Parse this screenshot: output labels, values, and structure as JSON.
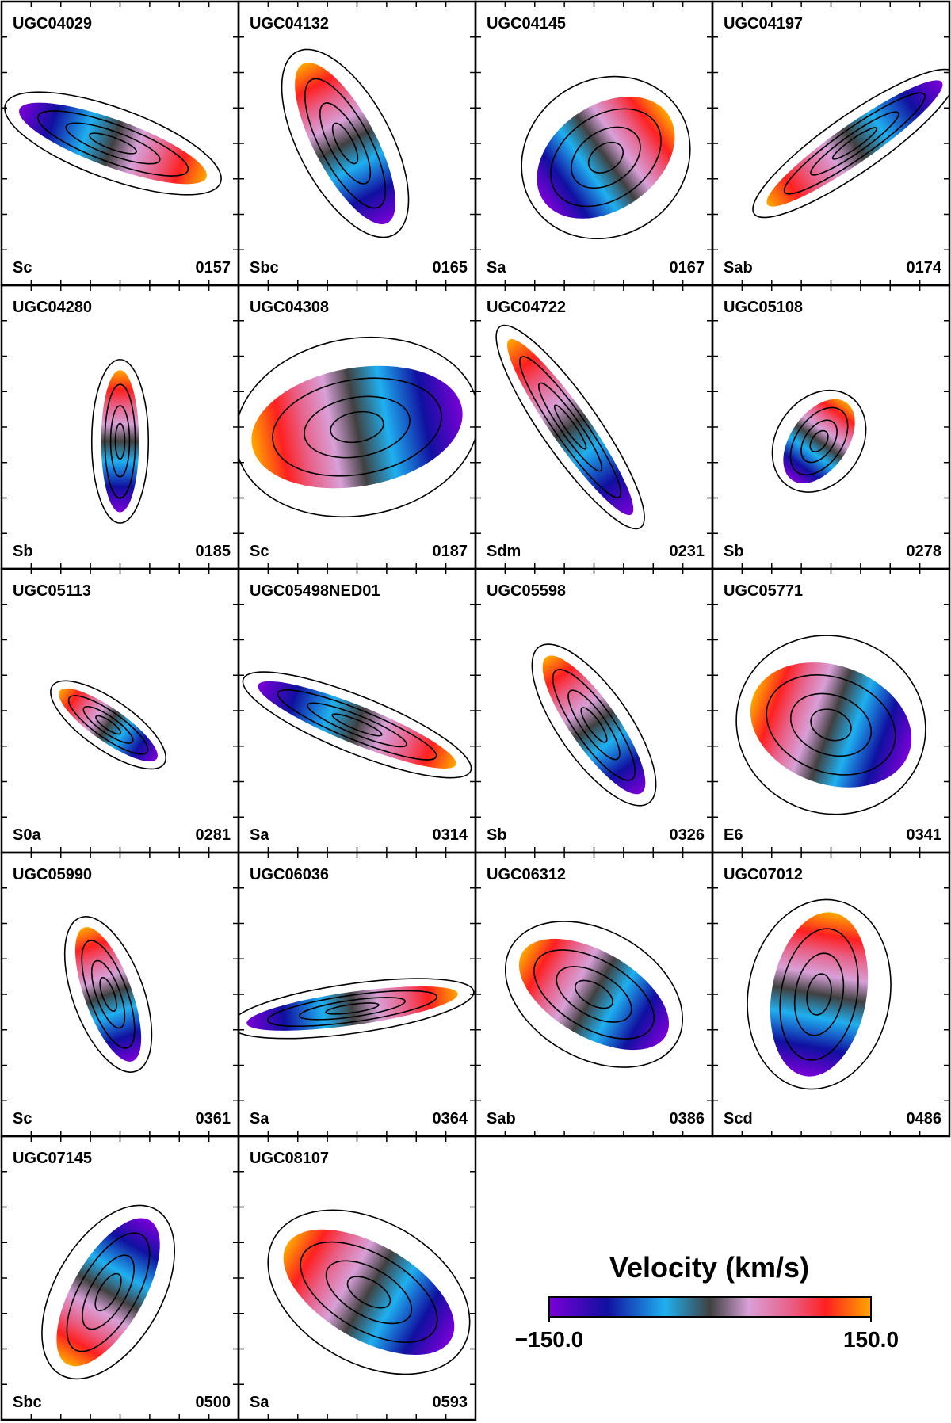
{
  "panels": [
    {
      "name": "UGC04029",
      "morph": "Sc",
      "id": "0157"
    },
    {
      "name": "UGC04132",
      "morph": "Sbc",
      "id": "0165"
    },
    {
      "name": "UGC04145",
      "morph": "Sa",
      "id": "0167"
    },
    {
      "name": "UGC04197",
      "morph": "Sab",
      "id": "0174"
    },
    {
      "name": "UGC04280",
      "morph": "Sb",
      "id": "0185"
    },
    {
      "name": "UGC04308",
      "morph": "Sc",
      "id": "0187"
    },
    {
      "name": "UGC04722",
      "morph": "Sdm",
      "id": "0231"
    },
    {
      "name": "UGC05108",
      "morph": "Sb",
      "id": "0278"
    },
    {
      "name": "UGC05113",
      "morph": "S0a",
      "id": "0281"
    },
    {
      "name": "UGC05498NED01",
      "morph": "Sa",
      "id": "0314"
    },
    {
      "name": "UGC05598",
      "morph": "Sb",
      "id": "0326"
    },
    {
      "name": "UGC05771",
      "morph": "E6",
      "id": "0341"
    },
    {
      "name": "UGC05990",
      "morph": "Sc",
      "id": "0361"
    },
    {
      "name": "UGC06036",
      "morph": "Sa",
      "id": "0364"
    },
    {
      "name": "UGC06312",
      "morph": "Sab",
      "id": "0386"
    },
    {
      "name": "UGC07012",
      "morph": "Scd",
      "id": "0486"
    },
    {
      "name": "UGC07145",
      "morph": "Sbc",
      "id": "0500"
    },
    {
      "name": "UGC08107",
      "morph": "Sa",
      "id": "0593"
    }
  ],
  "colorbar": {
    "title": "Velocity (km/s)",
    "lim": [
      -150,
      150
    ],
    "ticks": [
      {
        "value": -150,
        "label": "−150.0"
      },
      {
        "value": 150,
        "label": "150.0"
      }
    ]
  }
}
